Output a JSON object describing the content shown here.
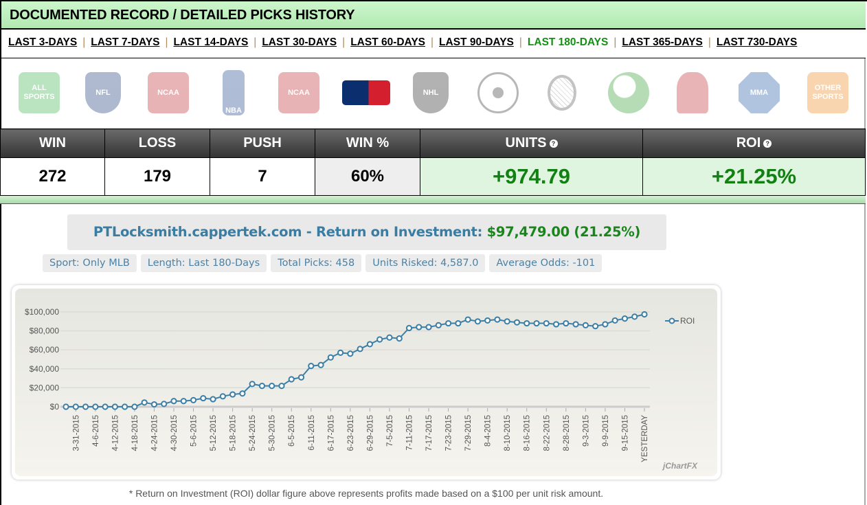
{
  "header": {
    "title": "DOCUMENTED RECORD / DETAILED PICKS HISTORY"
  },
  "nav": {
    "items": [
      "LAST 3-DAYS",
      "LAST 7-DAYS",
      "LAST 14-DAYS",
      "LAST 30-DAYS",
      "LAST 60-DAYS",
      "LAST 90-DAYS",
      "LAST 180-DAYS",
      "LAST 365-DAYS",
      "LAST 730-DAYS"
    ],
    "active": "LAST 180-DAYS",
    "separator": "|"
  },
  "sports": [
    {
      "name": "all-sports",
      "logo_text": "ALL SPORTS",
      "color": "#3cb04a"
    },
    {
      "name": "nfl",
      "logo_text": "NFL",
      "color": "#1a3a7a"
    },
    {
      "name": "ncaa-football",
      "logo_text": "NCAA",
      "color": "#c0282d"
    },
    {
      "name": "nba",
      "logo_text": "NBA",
      "color": "#1d428a"
    },
    {
      "name": "ncaa-basketball",
      "logo_text": "NCAA",
      "color": "#c0282d"
    },
    {
      "name": "mlb",
      "logo_text": "",
      "color": "#0b2e6e",
      "active": true
    },
    {
      "name": "nhl",
      "logo_text": "NHL",
      "color": "#222"
    },
    {
      "name": "soccer",
      "logo_text": "",
      "color": "#333"
    },
    {
      "name": "tennis",
      "logo_text": "",
      "color": "#555"
    },
    {
      "name": "golf",
      "logo_text": "",
      "color": "#2f9a2f"
    },
    {
      "name": "boxing",
      "logo_text": "",
      "color": "#c0282d"
    },
    {
      "name": "mma",
      "logo_text": "MMA",
      "color": "#1f5aa8"
    },
    {
      "name": "other-sports",
      "logo_text": "OTHER SPORTS",
      "color": "#f08a1c"
    }
  ],
  "stats": {
    "headers": [
      "WIN",
      "LOSS",
      "PUSH",
      "WIN %",
      "UNITS",
      "ROI"
    ],
    "values": [
      "272",
      "179",
      "7",
      "60%",
      "+974.79",
      "+21.25%"
    ],
    "help_icon": "?"
  },
  "summary": {
    "title_prefix": "PTLocksmith.cappertek.com - Return on Investment:",
    "title_value": "$97,479.00 (21.25%)",
    "tags": [
      "Sport: Only MLB",
      "Length: Last 180-Days",
      "Total Picks: 458",
      "Units Risked: 4,587.0",
      "Average Odds: -101"
    ]
  },
  "chart_data": {
    "type": "line",
    "legend_position": "top-right",
    "grid": true,
    "ylim": [
      0,
      100000
    ],
    "y_ticks": [
      "$0",
      "$20,000",
      "$40,000",
      "$60,000",
      "$80,000",
      "$100,000"
    ],
    "x_ticks": [
      "3-31-2015",
      "4-6-2015",
      "4-12-2015",
      "4-18-2015",
      "4-24-2015",
      "4-30-2015",
      "5-6-2015",
      "5-12-2015",
      "5-18-2015",
      "5-24-2015",
      "5-30-2015",
      "6-5-2015",
      "6-11-2015",
      "6-17-2015",
      "6-23-2015",
      "6-29-2015",
      "7-5-2015",
      "7-11-2015",
      "7-17-2015",
      "7-23-2015",
      "7-29-2015",
      "8-4-2015",
      "8-10-2015",
      "8-16-2015",
      "8-22-2015",
      "8-28-2015",
      "9-3-2015",
      "9-9-2015",
      "9-15-2015",
      "YESTERDAY"
    ],
    "series": [
      {
        "name": "ROI",
        "color": "#3b7ea6",
        "x": [
          "3-28",
          "3-31",
          "4-3",
          "4-6",
          "4-9",
          "4-12",
          "4-15",
          "4-18",
          "4-21",
          "4-24",
          "4-27",
          "4-30",
          "5-3",
          "5-6",
          "5-9",
          "5-12",
          "5-15",
          "5-18",
          "5-21",
          "5-24",
          "5-27",
          "5-30",
          "6-2",
          "6-5",
          "6-8",
          "6-11",
          "6-14",
          "6-17",
          "6-20",
          "6-23",
          "6-26",
          "6-29",
          "7-2",
          "7-5",
          "7-8",
          "7-11",
          "7-14",
          "7-17",
          "7-20",
          "7-23",
          "7-26",
          "7-29",
          "8-1",
          "8-4",
          "8-7",
          "8-10",
          "8-13",
          "8-16",
          "8-19",
          "8-22",
          "8-25",
          "8-28",
          "8-31",
          "9-3",
          "9-6",
          "9-9",
          "9-12",
          "9-15",
          "9-18",
          "YESTERDAY"
        ],
        "values": [
          0,
          0,
          0,
          0,
          0,
          0,
          0,
          0,
          4500,
          2500,
          3000,
          6000,
          6000,
          7000,
          9000,
          8000,
          11000,
          13000,
          14000,
          24000,
          22000,
          22000,
          22000,
          29000,
          31000,
          43000,
          44000,
          52000,
          57000,
          56000,
          61000,
          66000,
          71000,
          73000,
          72000,
          83000,
          84000,
          84000,
          86000,
          88000,
          88000,
          92000,
          90000,
          91000,
          92000,
          90000,
          89000,
          88000,
          88000,
          88000,
          87000,
          88000,
          87000,
          86000,
          85000,
          87000,
          91000,
          93000,
          95000,
          97479
        ]
      }
    ],
    "watermark": "jChartFX"
  },
  "footnote": "* Return on Investment (ROI) dollar figure above represents profits made based on a $100 per unit risk amount."
}
